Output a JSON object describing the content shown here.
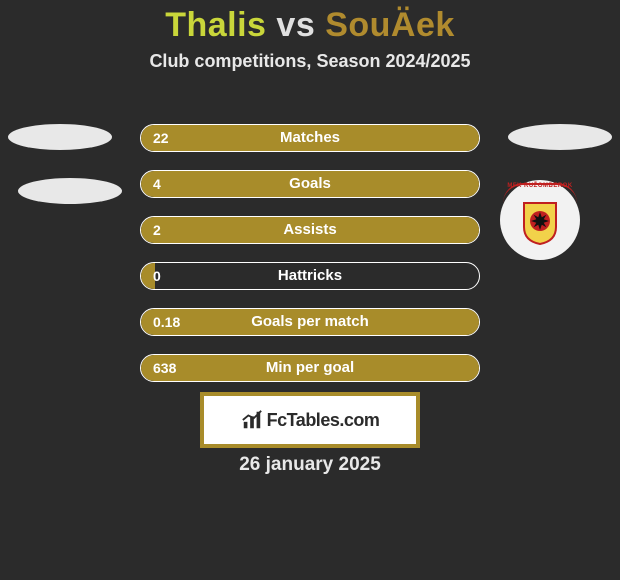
{
  "title": {
    "player1": "Thalis",
    "vs": "vs",
    "player2": "SouÄek"
  },
  "subtitle": "Club competitions, Season 2024/2025",
  "colors": {
    "background": "#2b2b2b",
    "bar_fill": "#a88c2a",
    "bar_border": "#ffffff",
    "title_p1": "#c9d63a",
    "title_p2": "#b08b2e",
    "title_vs": "#e0e0e0",
    "text": "#ffffff",
    "fct_border": "#a88c2a",
    "fct_bg": "#ffffff",
    "fct_text": "#2b2b2b"
  },
  "bars": [
    {
      "label": "Matches",
      "value": "22",
      "fill_pct": 100
    },
    {
      "label": "Goals",
      "value": "4",
      "fill_pct": 100
    },
    {
      "label": "Assists",
      "value": "2",
      "fill_pct": 100
    },
    {
      "label": "Hattricks",
      "value": "0",
      "fill_pct": 4
    },
    {
      "label": "Goals per match",
      "value": "0.18",
      "fill_pct": 100
    },
    {
      "label": "Min per goal",
      "value": "638",
      "fill_pct": 100
    }
  ],
  "badge": {
    "text_top": "MFK RUŽOMBEROK",
    "shield_fill": "#f2d24a",
    "shield_border": "#c02020",
    "rosette_outer": "#c02020",
    "rosette_inner": "#111111"
  },
  "branding": {
    "site": "FcTables.com"
  },
  "date": "26 january 2025"
}
